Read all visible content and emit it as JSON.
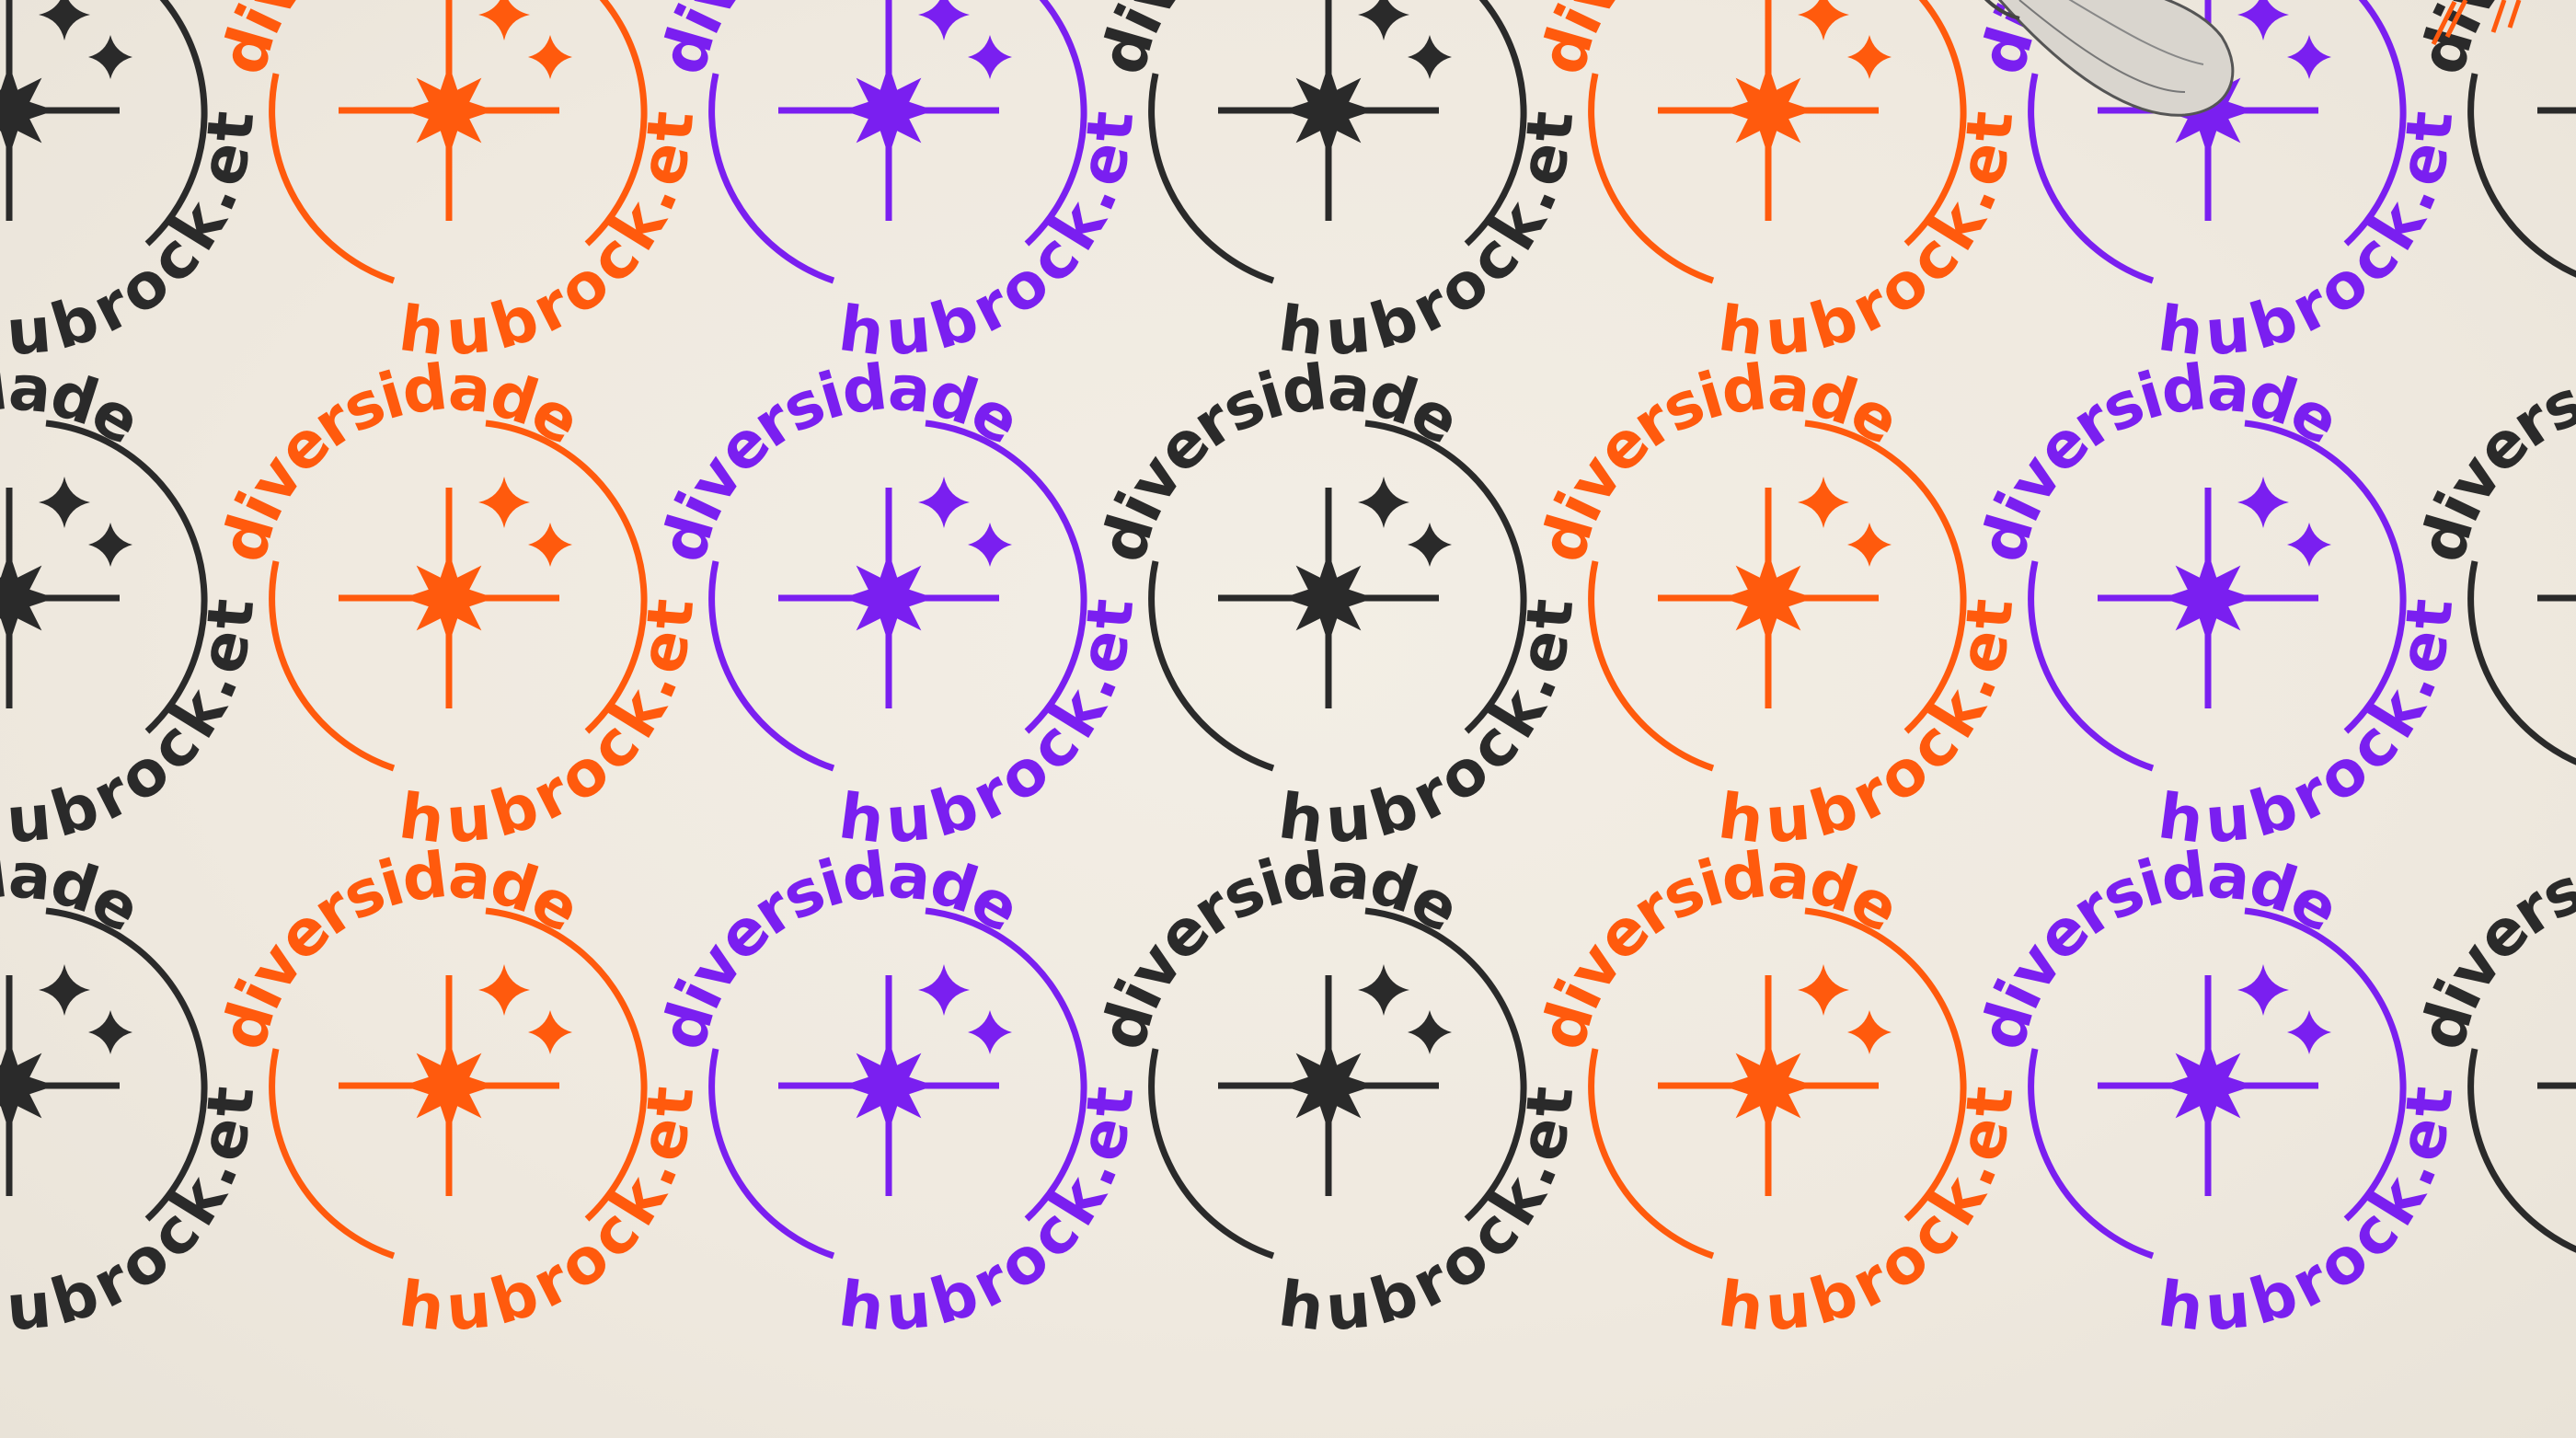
{
  "badge": {
    "top_text": "diversidade",
    "bottom_text": "hubrock.et"
  },
  "palette": {
    "background": "#f0ebe1",
    "black": "#2a2a2a",
    "orange": "#ff5a0d",
    "purple": "#7a1ff0"
  },
  "pattern": {
    "color_sequence": [
      "black",
      "orange",
      "purple"
    ],
    "rows": 3,
    "columns": 7
  },
  "decorations": {
    "top_right_figure": "sculpture-fragment",
    "top_right_marks": "orange-slash-marks"
  }
}
